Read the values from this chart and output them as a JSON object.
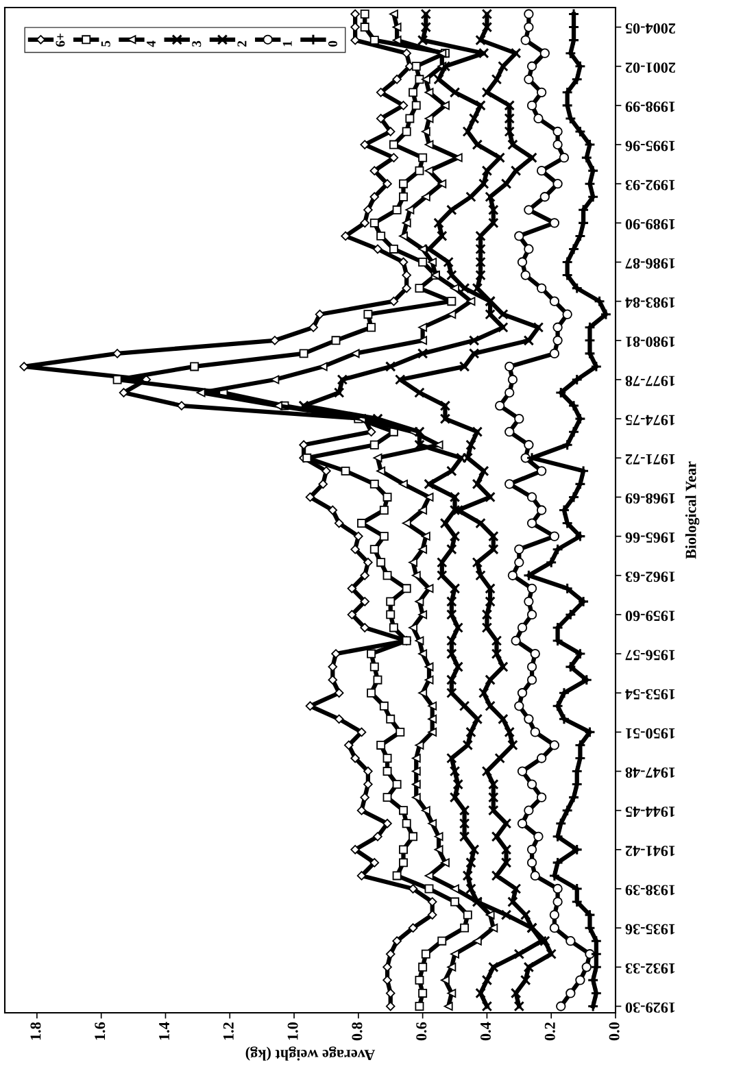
{
  "chart_data": {
    "type": "line",
    "orientation": "horizontal",
    "xlabel": "Average weight (kg)",
    "ylabel": "Biological Year",
    "categories": [
      null,
      "2004-05",
      null,
      null,
      "2001-02",
      null,
      null,
      "1998-99",
      null,
      null,
      "1995-96",
      null,
      null,
      "1992-93",
      null,
      null,
      "1989-90",
      null,
      null,
      "1986-87",
      null,
      null,
      "1983-84",
      null,
      null,
      "1980-81",
      null,
      null,
      "1977-78",
      null,
      null,
      "1974-75",
      null,
      null,
      "1971-72",
      null,
      null,
      "1968-69",
      null,
      null,
      "1965-66",
      null,
      null,
      "1962-63",
      null,
      null,
      "1959-60",
      null,
      null,
      "1956-57",
      null,
      null,
      "1953-54",
      null,
      null,
      "1950-51",
      null,
      null,
      "1947-48",
      null,
      null,
      "1944-45",
      null,
      null,
      "1941-42",
      null,
      null,
      "1938-39",
      null,
      null,
      "1935-36",
      null,
      null,
      "1932-33",
      null,
      null,
      "1929-30"
    ],
    "xlim": [
      1.9,
      0
    ],
    "xticks": [
      1.8,
      1.6,
      1.4,
      1.2,
      {
        "value": 1,
        "label": "1.0"
      },
      0.8,
      0.6,
      0.4,
      0.2,
      {
        "value": 0,
        "label": "0.0"
      }
    ],
    "legend": "top left",
    "grid": false,
    "line_style": "solid",
    "series": [
      {
        "name": "6+",
        "color": "#000000",
        "marker": "diamond",
        "values": [
          0.81,
          0.81,
          0.81,
          0.65,
          0.64,
          0.68,
          0.73,
          0.66,
          0.73,
          0.7,
          0.78,
          0.69,
          0.75,
          0.71,
          0.75,
          0.77,
          0.78,
          0.84,
          0.74,
          0.66,
          0.65,
          0.65,
          0.69,
          0.92,
          0.94,
          1.06,
          1.55,
          1.84,
          1.46,
          1.53,
          1.35,
          0.78,
          0.76,
          0.97,
          0.97,
          0.9,
          0.91,
          0.95,
          0.88,
          0.86,
          0.8,
          0.81,
          0.77,
          0.78,
          0.82,
          0.78,
          0.82,
          0.78,
          0.65,
          0.87,
          0.88,
          0.88,
          0.86,
          0.95,
          0.86,
          0.79,
          0.83,
          0.81,
          0.77,
          0.77,
          0.78,
          0.79,
          0.71,
          0.74,
          0.81,
          0.75,
          0.79,
          0.63,
          0.57,
          0.57,
          0.63,
          0.68,
          0.7,
          0.71,
          0.71,
          0.7,
          0.7
        ]
      },
      {
        "name": "5",
        "color": "#000000",
        "marker": "square",
        "values": [
          0.78,
          0.78,
          0.75,
          0.53,
          0.62,
          0.61,
          0.63,
          0.62,
          0.64,
          0.65,
          0.69,
          0.6,
          0.61,
          0.66,
          0.66,
          0.68,
          0.75,
          0.73,
          0.69,
          0.6,
          0.56,
          0.61,
          0.51,
          0.77,
          0.76,
          0.87,
          0.97,
          1.31,
          1.55,
          1.22,
          1.03,
          0.8,
          0.69,
          0.75,
          0.96,
          0.84,
          0.75,
          0.71,
          0.72,
          0.79,
          0.72,
          0.75,
          0.73,
          0.71,
          0.65,
          0.7,
          0.7,
          0.69,
          0.65,
          0.76,
          0.75,
          0.74,
          0.76,
          0.72,
          0.7,
          0.67,
          0.73,
          0.71,
          0.71,
          0.68,
          0.71,
          0.66,
          0.65,
          0.63,
          0.66,
          0.66,
          0.68,
          0.58,
          0.5,
          0.46,
          0.47,
          0.54,
          0.59,
          0.6,
          0.61,
          0.6,
          0.61
        ]
      },
      {
        "name": "4",
        "color": "#000000",
        "marker": "triangle",
        "values": [
          0.69,
          0.68,
          0.68,
          0.54,
          0.54,
          0.59,
          0.58,
          0.53,
          0.58,
          0.59,
          0.58,
          0.49,
          0.58,
          0.54,
          0.59,
          0.64,
          0.65,
          0.66,
          0.6,
          0.57,
          0.56,
          0.5,
          0.45,
          0.51,
          0.6,
          0.6,
          0.81,
          0.91,
          1.06,
          1.29,
          1.05,
          0.79,
          0.63,
          0.55,
          0.74,
          0.73,
          0.66,
          0.58,
          0.6,
          0.65,
          0.59,
          0.6,
          0.63,
          0.62,
          0.58,
          0.61,
          0.6,
          0.63,
          0.61,
          0.6,
          0.58,
          0.58,
          0.6,
          0.57,
          0.57,
          0.57,
          0.61,
          0.62,
          0.62,
          0.62,
          0.62,
          0.59,
          0.57,
          0.55,
          0.55,
          0.53,
          0.58,
          0.5,
          0.43,
          0.39,
          0.38,
          0.43,
          0.5,
          0.51,
          0.53,
          0.51,
          0.52
        ]
      },
      {
        "name": "3",
        "color": "#000000",
        "marker": "cross",
        "values": [
          0.59,
          0.59,
          0.6,
          0.41,
          0.53,
          0.55,
          0.5,
          0.42,
          0.44,
          0.46,
          0.43,
          0.36,
          0.4,
          0.41,
          0.45,
          0.51,
          0.55,
          0.54,
          0.58,
          0.52,
          0.51,
          0.47,
          0.39,
          0.39,
          0.35,
          0.44,
          0.6,
          0.7,
          0.85,
          0.86,
          0.97,
          0.74,
          0.61,
          0.61,
          0.48,
          0.51,
          0.58,
          0.5,
          0.5,
          0.53,
          0.5,
          0.51,
          0.54,
          0.54,
          0.5,
          0.51,
          0.51,
          0.49,
          0.51,
          0.51,
          0.49,
          0.51,
          0.51,
          0.47,
          0.43,
          0.45,
          0.46,
          0.51,
          0.5,
          0.49,
          0.5,
          0.47,
          0.47,
          0.47,
          0.44,
          0.45,
          0.46,
          0.45,
          0.43,
          0.34,
          0.26,
          0.23,
          0.3,
          0.38,
          0.4,
          0.42,
          0.4
        ]
      },
      {
        "name": "2",
        "color": "#000000",
        "marker": "cross",
        "values": [
          0.4,
          0.4,
          0.42,
          0.31,
          0.35,
          0.37,
          0.4,
          0.33,
          0.33,
          0.33,
          0.32,
          0.26,
          0.31,
          0.34,
          0.39,
          0.38,
          0.38,
          0.42,
          0.42,
          0.42,
          0.42,
          0.43,
          0.39,
          0.35,
          0.24,
          0.27,
          0.44,
          0.47,
          0.67,
          0.61,
          0.53,
          0.53,
          0.43,
          0.45,
          0.46,
          0.41,
          0.43,
          0.39,
          0.49,
          0.42,
          0.38,
          0.38,
          0.43,
          0.42,
          0.39,
          0.39,
          0.4,
          0.4,
          0.37,
          0.37,
          0.35,
          0.39,
          0.41,
          0.39,
          0.35,
          0.33,
          0.32,
          0.36,
          0.4,
          0.38,
          0.38,
          0.38,
          0.34,
          0.37,
          0.34,
          0.34,
          0.37,
          0.31,
          0.32,
          0.28,
          0.26,
          0.22,
          0.2,
          0.27,
          0.28,
          0.31,
          0.3
        ]
      },
      {
        "name": "1",
        "color": "#000000",
        "marker": "circle",
        "values": [
          0.27,
          0.27,
          0.28,
          0.22,
          0.26,
          0.27,
          0.23,
          0.26,
          0.24,
          0.18,
          0.18,
          0.16,
          0.23,
          0.18,
          0.22,
          0.27,
          0.19,
          0.3,
          0.27,
          0.29,
          0.28,
          0.23,
          0.19,
          0.15,
          0.18,
          0.18,
          0.19,
          0.33,
          0.32,
          0.33,
          0.36,
          0.3,
          0.33,
          0.27,
          0.28,
          0.23,
          0.33,
          0.26,
          0.23,
          0.26,
          0.19,
          0.3,
          0.3,
          0.32,
          0.26,
          0.27,
          0.26,
          0.29,
          0.31,
          0.25,
          0.26,
          0.26,
          0.29,
          0.3,
          0.27,
          0.25,
          0.19,
          0.23,
          0.29,
          0.26,
          0.23,
          0.27,
          0.29,
          0.24,
          0.26,
          0.26,
          0.25,
          0.18,
          0.18,
          0.19,
          0.19,
          0.14,
          0.08,
          0.09,
          0.11,
          0.14,
          0.17
        ]
      },
      {
        "name": "0",
        "color": "#000000",
        "marker": "plus",
        "values": [
          0.13,
          0.13,
          0.13,
          0.14,
          0.11,
          0.12,
          0.15,
          0.15,
          0.14,
          0.11,
          0.08,
          0.09,
          0.07,
          0.08,
          0.07,
          0.1,
          0.1,
          0.11,
          0.13,
          0.15,
          0.15,
          0.12,
          0.05,
          0.03,
          0.08,
          0.08,
          0.08,
          0.06,
          0.12,
          0.17,
          0.13,
          0.11,
          0.13,
          0.15,
          0.26,
          0.1,
          0.11,
          0.13,
          0.16,
          0.15,
          0.11,
          0.18,
          0.2,
          0.27,
          0.15,
          0.1,
          0.14,
          0.18,
          0.18,
          0.11,
          0.14,
          0.09,
          0.16,
          0.18,
          0.16,
          0.08,
          0.11,
          0.11,
          0.12,
          0.12,
          0.13,
          0.15,
          0.17,
          0.18,
          0.12,
          0.18,
          0.19,
          0.12,
          0.12,
          0.08,
          0.08,
          0.06,
          0.06,
          0.06,
          0.07,
          0.06,
          0.07
        ]
      }
    ]
  }
}
